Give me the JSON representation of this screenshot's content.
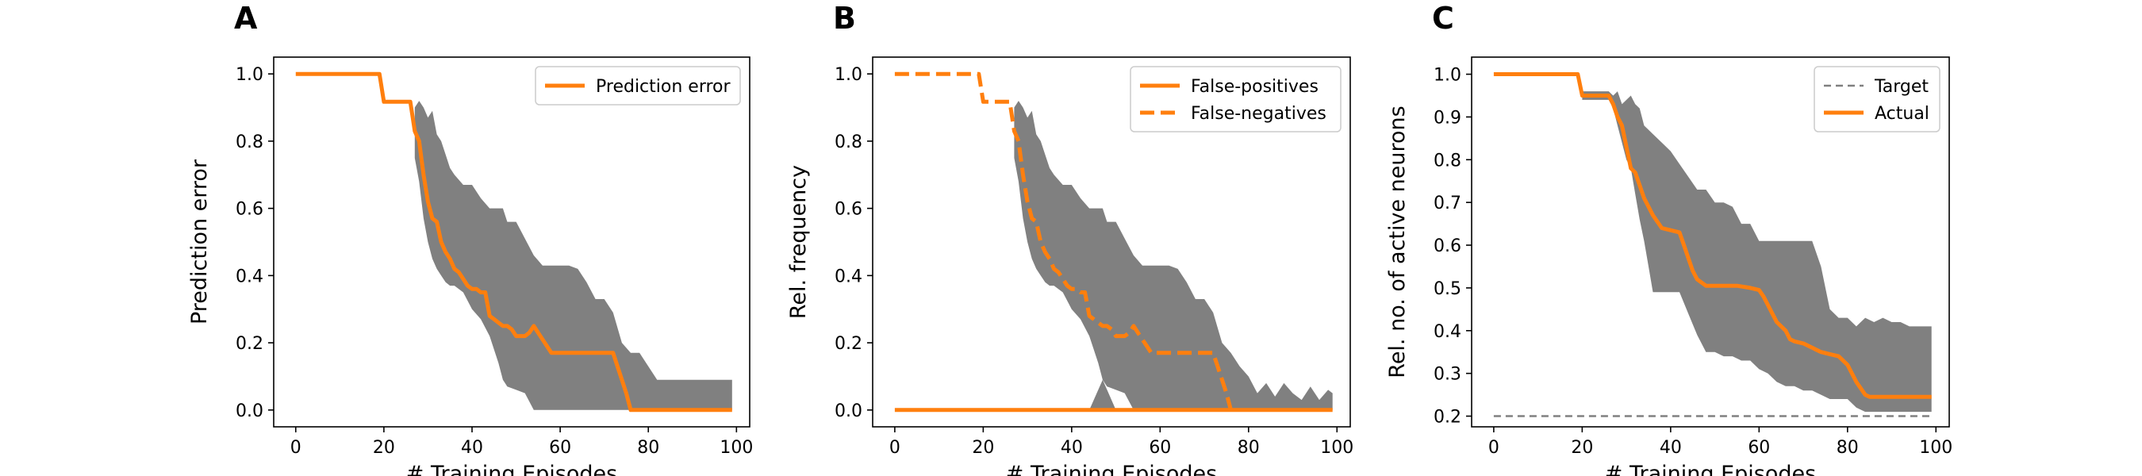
{
  "colors": {
    "orange": "#ff7f0e",
    "band": "#808080",
    "target": "#808080",
    "frame": "#000000"
  },
  "chart_data": [
    {
      "type": "line",
      "panel_label": "A",
      "xlabel": "# Training Episodes",
      "ylabel": "Prediction error",
      "xlim": [
        -5,
        103
      ],
      "ylim": [
        -0.05,
        1.05
      ],
      "xticks": [
        0,
        20,
        40,
        60,
        80,
        100
      ],
      "yticks": [
        0.0,
        0.2,
        0.4,
        0.6,
        0.8,
        1.0
      ],
      "ytick_decimals": 1,
      "legend": "top-right",
      "series": [
        {
          "name": "Prediction error",
          "style": "solid",
          "x": [
            0,
            19,
            20,
            26,
            27,
            28,
            29,
            30,
            31,
            32,
            33,
            34,
            35,
            36,
            37,
            38,
            39,
            40,
            41,
            42,
            43,
            44,
            45,
            46,
            47,
            48,
            49,
            50,
            51,
            52,
            53,
            54,
            55,
            56,
            57,
            58,
            59,
            60,
            62,
            64,
            66,
            68,
            70,
            72,
            73,
            74,
            75,
            76,
            78,
            80,
            85,
            90,
            95,
            99
          ],
          "y": [
            1.0,
            1.0,
            0.917,
            0.917,
            0.83,
            0.8,
            0.7,
            0.62,
            0.57,
            0.56,
            0.5,
            0.47,
            0.45,
            0.42,
            0.41,
            0.39,
            0.37,
            0.36,
            0.36,
            0.35,
            0.35,
            0.28,
            0.27,
            0.26,
            0.25,
            0.25,
            0.24,
            0.22,
            0.22,
            0.22,
            0.23,
            0.25,
            0.23,
            0.21,
            0.19,
            0.17,
            0.17,
            0.17,
            0.17,
            0.17,
            0.17,
            0.17,
            0.17,
            0.17,
            0.13,
            0.09,
            0.05,
            0.0,
            0.0,
            0.0,
            0.0,
            0.0,
            0.0,
            0.0
          ]
        }
      ],
      "band": {
        "x": [
          27,
          28,
          29,
          30,
          31,
          32,
          33,
          34,
          35,
          36,
          38,
          40,
          42,
          44,
          46,
          47,
          48,
          50,
          52,
          54,
          56,
          58,
          60,
          62,
          64,
          66,
          68,
          70,
          72,
          74,
          76,
          78,
          80,
          82,
          84,
          90,
          95,
          99
        ],
        "upper": [
          0.9,
          0.92,
          0.9,
          0.87,
          0.89,
          0.82,
          0.8,
          0.76,
          0.72,
          0.7,
          0.67,
          0.67,
          0.63,
          0.6,
          0.6,
          0.6,
          0.56,
          0.56,
          0.51,
          0.46,
          0.43,
          0.43,
          0.43,
          0.43,
          0.42,
          0.38,
          0.33,
          0.33,
          0.29,
          0.2,
          0.17,
          0.17,
          0.13,
          0.09,
          0.09,
          0.09,
          0.09,
          0.09
        ],
        "lower": [
          0.75,
          0.68,
          0.57,
          0.5,
          0.45,
          0.42,
          0.4,
          0.38,
          0.37,
          0.37,
          0.35,
          0.3,
          0.27,
          0.22,
          0.14,
          0.09,
          0.07,
          0.06,
          0.05,
          0.0,
          0.0,
          0.0,
          0.0,
          0.0,
          0.0,
          0.0,
          0.0,
          0.0,
          0.0,
          0.0,
          0.0,
          0.0,
          0.0,
          0.0,
          0.0,
          0.0,
          0.0,
          0.0
        ]
      }
    },
    {
      "type": "line",
      "panel_label": "B",
      "xlabel": "# Training Episodes",
      "ylabel": "Rel. frequency",
      "xlim": [
        -5,
        103
      ],
      "ylim": [
        -0.05,
        1.05
      ],
      "xticks": [
        0,
        20,
        40,
        60,
        80,
        100
      ],
      "yticks": [
        0.0,
        0.2,
        0.4,
        0.6,
        0.8,
        1.0
      ],
      "ytick_decimals": 1,
      "legend": "top-right",
      "series": [
        {
          "name": "False-positives",
          "style": "solid",
          "x": [
            0,
            99
          ],
          "y": [
            0.0,
            0.0
          ]
        },
        {
          "name": "False-negatives",
          "style": "dashed",
          "x": [
            0,
            19,
            20,
            26,
            27,
            28,
            29,
            30,
            31,
            32,
            33,
            34,
            35,
            36,
            37,
            38,
            39,
            40,
            41,
            42,
            43,
            44,
            45,
            46,
            47,
            48,
            49,
            50,
            51,
            52,
            53,
            54,
            55,
            56,
            57,
            58,
            59,
            60,
            62,
            64,
            66,
            68,
            70,
            72,
            73,
            74,
            75,
            76
          ],
          "y": [
            1.0,
            1.0,
            0.917,
            0.917,
            0.83,
            0.8,
            0.7,
            0.62,
            0.57,
            0.56,
            0.5,
            0.47,
            0.45,
            0.42,
            0.41,
            0.39,
            0.37,
            0.36,
            0.36,
            0.35,
            0.35,
            0.28,
            0.27,
            0.26,
            0.25,
            0.25,
            0.24,
            0.22,
            0.22,
            0.22,
            0.23,
            0.25,
            0.23,
            0.21,
            0.19,
            0.17,
            0.17,
            0.17,
            0.17,
            0.17,
            0.17,
            0.17,
            0.17,
            0.17,
            0.13,
            0.09,
            0.05,
            0.0
          ]
        }
      ],
      "band": {
        "x": [
          27,
          28,
          29,
          30,
          31,
          32,
          33,
          34,
          35,
          36,
          38,
          40,
          42,
          44,
          46,
          47,
          48,
          50,
          52,
          54,
          56,
          58,
          60,
          62,
          64,
          66,
          68,
          70,
          72,
          74,
          76,
          78,
          80,
          82,
          84,
          86,
          88,
          90,
          92,
          94,
          96,
          98,
          99
        ],
        "upper": [
          0.9,
          0.92,
          0.9,
          0.87,
          0.89,
          0.82,
          0.8,
          0.76,
          0.72,
          0.7,
          0.67,
          0.67,
          0.63,
          0.6,
          0.6,
          0.6,
          0.56,
          0.56,
          0.51,
          0.46,
          0.43,
          0.43,
          0.43,
          0.43,
          0.42,
          0.38,
          0.33,
          0.33,
          0.29,
          0.2,
          0.17,
          0.13,
          0.1,
          0.05,
          0.08,
          0.04,
          0.08,
          0.05,
          0.03,
          0.07,
          0.03,
          0.06,
          0.05
        ],
        "lower": [
          0.75,
          0.68,
          0.57,
          0.5,
          0.45,
          0.42,
          0.4,
          0.38,
          0.37,
          0.37,
          0.35,
          0.3,
          0.27,
          0.22,
          0.14,
          0.09,
          0.07,
          0.06,
          0.05,
          0.0,
          0.0,
          0.0,
          0.0,
          0.0,
          0.0,
          0.0,
          0.0,
          0.0,
          0.0,
          0.0,
          0.0,
          0.0,
          0.0,
          0.0,
          0.0,
          0.0,
          0.0,
          0.0,
          0.0,
          0.0,
          0.0,
          0.0,
          0.0
        ]
      },
      "band2": {
        "x": [
          44,
          47,
          50
        ],
        "upper": [
          0.0,
          0.09,
          0.0
        ],
        "lower": [
          0.0,
          0.0,
          0.0
        ]
      }
    },
    {
      "type": "line",
      "panel_label": "C",
      "xlabel": "# Training Episodes",
      "ylabel": "Rel. no. of active neurons",
      "xlim": [
        -5,
        103
      ],
      "ylim": [
        0.175,
        1.04
      ],
      "xticks": [
        0,
        20,
        40,
        60,
        80,
        100
      ],
      "yticks": [
        0.2,
        0.3,
        0.4,
        0.5,
        0.6,
        0.7,
        0.8,
        0.9,
        1.0
      ],
      "ytick_decimals": 1,
      "legend": "top-right",
      "series": [
        {
          "name": "Target",
          "style": "thin-dashed",
          "x": [
            0,
            99
          ],
          "y": [
            0.2,
            0.2
          ]
        },
        {
          "name": "Actual",
          "style": "solid",
          "x": [
            0,
            19,
            20,
            26,
            27,
            28,
            29,
            30,
            31,
            32,
            33,
            34,
            35,
            36,
            38,
            40,
            42,
            43,
            44,
            45,
            46,
            48,
            50,
            52,
            55,
            58,
            60,
            61,
            62,
            63,
            64,
            66,
            67,
            68,
            70,
            72,
            74,
            76,
            78,
            80,
            82,
            84,
            85,
            90,
            95,
            99
          ],
          "y": [
            1.0,
            1.0,
            0.95,
            0.95,
            0.93,
            0.9,
            0.88,
            0.83,
            0.78,
            0.77,
            0.74,
            0.71,
            0.69,
            0.67,
            0.64,
            0.635,
            0.63,
            0.6,
            0.57,
            0.54,
            0.52,
            0.505,
            0.505,
            0.505,
            0.505,
            0.5,
            0.495,
            0.48,
            0.46,
            0.44,
            0.42,
            0.4,
            0.38,
            0.375,
            0.37,
            0.36,
            0.35,
            0.345,
            0.34,
            0.32,
            0.28,
            0.25,
            0.245,
            0.245,
            0.245,
            0.245
          ]
        }
      ],
      "band": {
        "x": [
          20,
          26,
          27,
          28,
          29,
          30,
          31,
          32,
          33,
          34,
          35,
          36,
          38,
          40,
          42,
          44,
          46,
          48,
          50,
          52,
          54,
          56,
          58,
          60,
          62,
          64,
          66,
          68,
          70,
          72,
          74,
          76,
          78,
          80,
          82,
          84,
          86,
          88,
          90,
          92,
          94,
          96,
          98,
          99
        ],
        "upper": [
          0.96,
          0.96,
          0.95,
          0.96,
          0.93,
          0.94,
          0.95,
          0.93,
          0.92,
          0.88,
          0.87,
          0.86,
          0.84,
          0.82,
          0.79,
          0.76,
          0.73,
          0.73,
          0.7,
          0.7,
          0.69,
          0.65,
          0.65,
          0.61,
          0.61,
          0.61,
          0.61,
          0.61,
          0.61,
          0.61,
          0.55,
          0.45,
          0.43,
          0.43,
          0.41,
          0.43,
          0.42,
          0.43,
          0.42,
          0.42,
          0.41,
          0.41,
          0.41,
          0.41
        ],
        "lower": [
          0.94,
          0.94,
          0.92,
          0.88,
          0.84,
          0.8,
          0.78,
          0.72,
          0.66,
          0.61,
          0.55,
          0.49,
          0.49,
          0.49,
          0.49,
          0.44,
          0.39,
          0.35,
          0.35,
          0.34,
          0.34,
          0.33,
          0.33,
          0.31,
          0.3,
          0.28,
          0.27,
          0.27,
          0.26,
          0.26,
          0.25,
          0.24,
          0.24,
          0.24,
          0.22,
          0.21,
          0.21,
          0.21,
          0.21,
          0.21,
          0.21,
          0.21,
          0.21,
          0.21
        ]
      }
    }
  ]
}
